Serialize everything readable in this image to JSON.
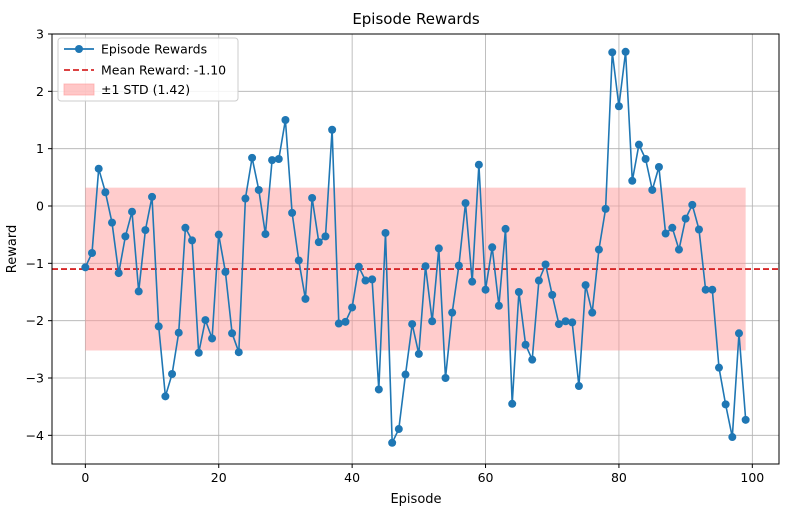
{
  "chart_data": {
    "type": "line",
    "title": "Episode Rewards",
    "xlabel": "Episode",
    "ylabel": "Reward",
    "xlim": [
      -5,
      104
    ],
    "ylim": [
      -4.5,
      3.0
    ],
    "x_ticks": [
      0,
      20,
      40,
      60,
      80,
      100
    ],
    "y_ticks": [
      -4,
      -3,
      -2,
      -1,
      0,
      1,
      2,
      3
    ],
    "grid": true,
    "legend_position": "top-left",
    "series": [
      {
        "name": "Episode Rewards",
        "color": "#1f77b4",
        "marker": "circle",
        "x": [
          0,
          1,
          2,
          3,
          4,
          5,
          6,
          7,
          8,
          9,
          10,
          11,
          12,
          13,
          14,
          15,
          16,
          17,
          18,
          19,
          20,
          21,
          22,
          23,
          24,
          25,
          26,
          27,
          28,
          29,
          30,
          31,
          32,
          33,
          34,
          35,
          36,
          37,
          38,
          39,
          40,
          41,
          42,
          43,
          44,
          45,
          46,
          47,
          48,
          49,
          50,
          51,
          52,
          53,
          54,
          55,
          56,
          57,
          58,
          59,
          60,
          61,
          62,
          63,
          64,
          65,
          66,
          67,
          68,
          69,
          70,
          71,
          72,
          73,
          74,
          75,
          76,
          77,
          78,
          79,
          80,
          81,
          82,
          83,
          84,
          85,
          86,
          87,
          88,
          89,
          90,
          91,
          92,
          93,
          94,
          95,
          96,
          97,
          98,
          99
        ],
        "values": [
          -1.07,
          -0.82,
          0.65,
          0.24,
          -0.29,
          -1.17,
          -0.53,
          -0.1,
          -1.49,
          -0.42,
          0.16,
          -2.1,
          -3.32,
          -2.93,
          -2.21,
          -0.38,
          -0.6,
          -2.56,
          -1.99,
          -2.31,
          -0.5,
          -1.15,
          -2.22,
          -2.55,
          0.13,
          0.84,
          0.28,
          -0.49,
          0.8,
          0.82,
          1.5,
          -0.12,
          -0.95,
          -1.62,
          0.14,
          -0.63,
          -0.53,
          1.33,
          -2.05,
          -2.02,
          -1.77,
          -1.06,
          -1.3,
          -1.28,
          -3.2,
          -0.47,
          -4.13,
          -3.89,
          -2.94,
          -2.06,
          -2.58,
          -1.05,
          -2.01,
          -0.74,
          -3.0,
          -1.86,
          -1.04,
          0.05,
          -1.32,
          0.72,
          -1.46,
          -0.72,
          -1.74,
          -0.4,
          -3.45,
          -1.5,
          -2.42,
          -2.68,
          -1.3,
          -1.02,
          -1.55,
          -2.06,
          -2.01,
          -2.03,
          -3.14,
          -1.38,
          -1.86,
          -0.76,
          -0.05,
          2.68,
          1.74,
          2.69,
          0.44,
          1.07,
          0.82,
          0.28,
          0.68,
          -0.48,
          -0.38,
          -0.76,
          -0.22,
          0.02,
          -0.41,
          -1.46,
          -1.46,
          -2.82,
          -3.46,
          -4.03,
          -2.22,
          -3.73
        ]
      }
    ],
    "mean": {
      "name": "Mean Reward: -1.10",
      "value": -1.1,
      "color": "#d62728"
    },
    "std_band": {
      "name": "±1 STD (1.42)",
      "lower": -2.52,
      "upper": 0.32,
      "x_range": [
        0,
        99
      ],
      "color": "#ff9999"
    }
  }
}
